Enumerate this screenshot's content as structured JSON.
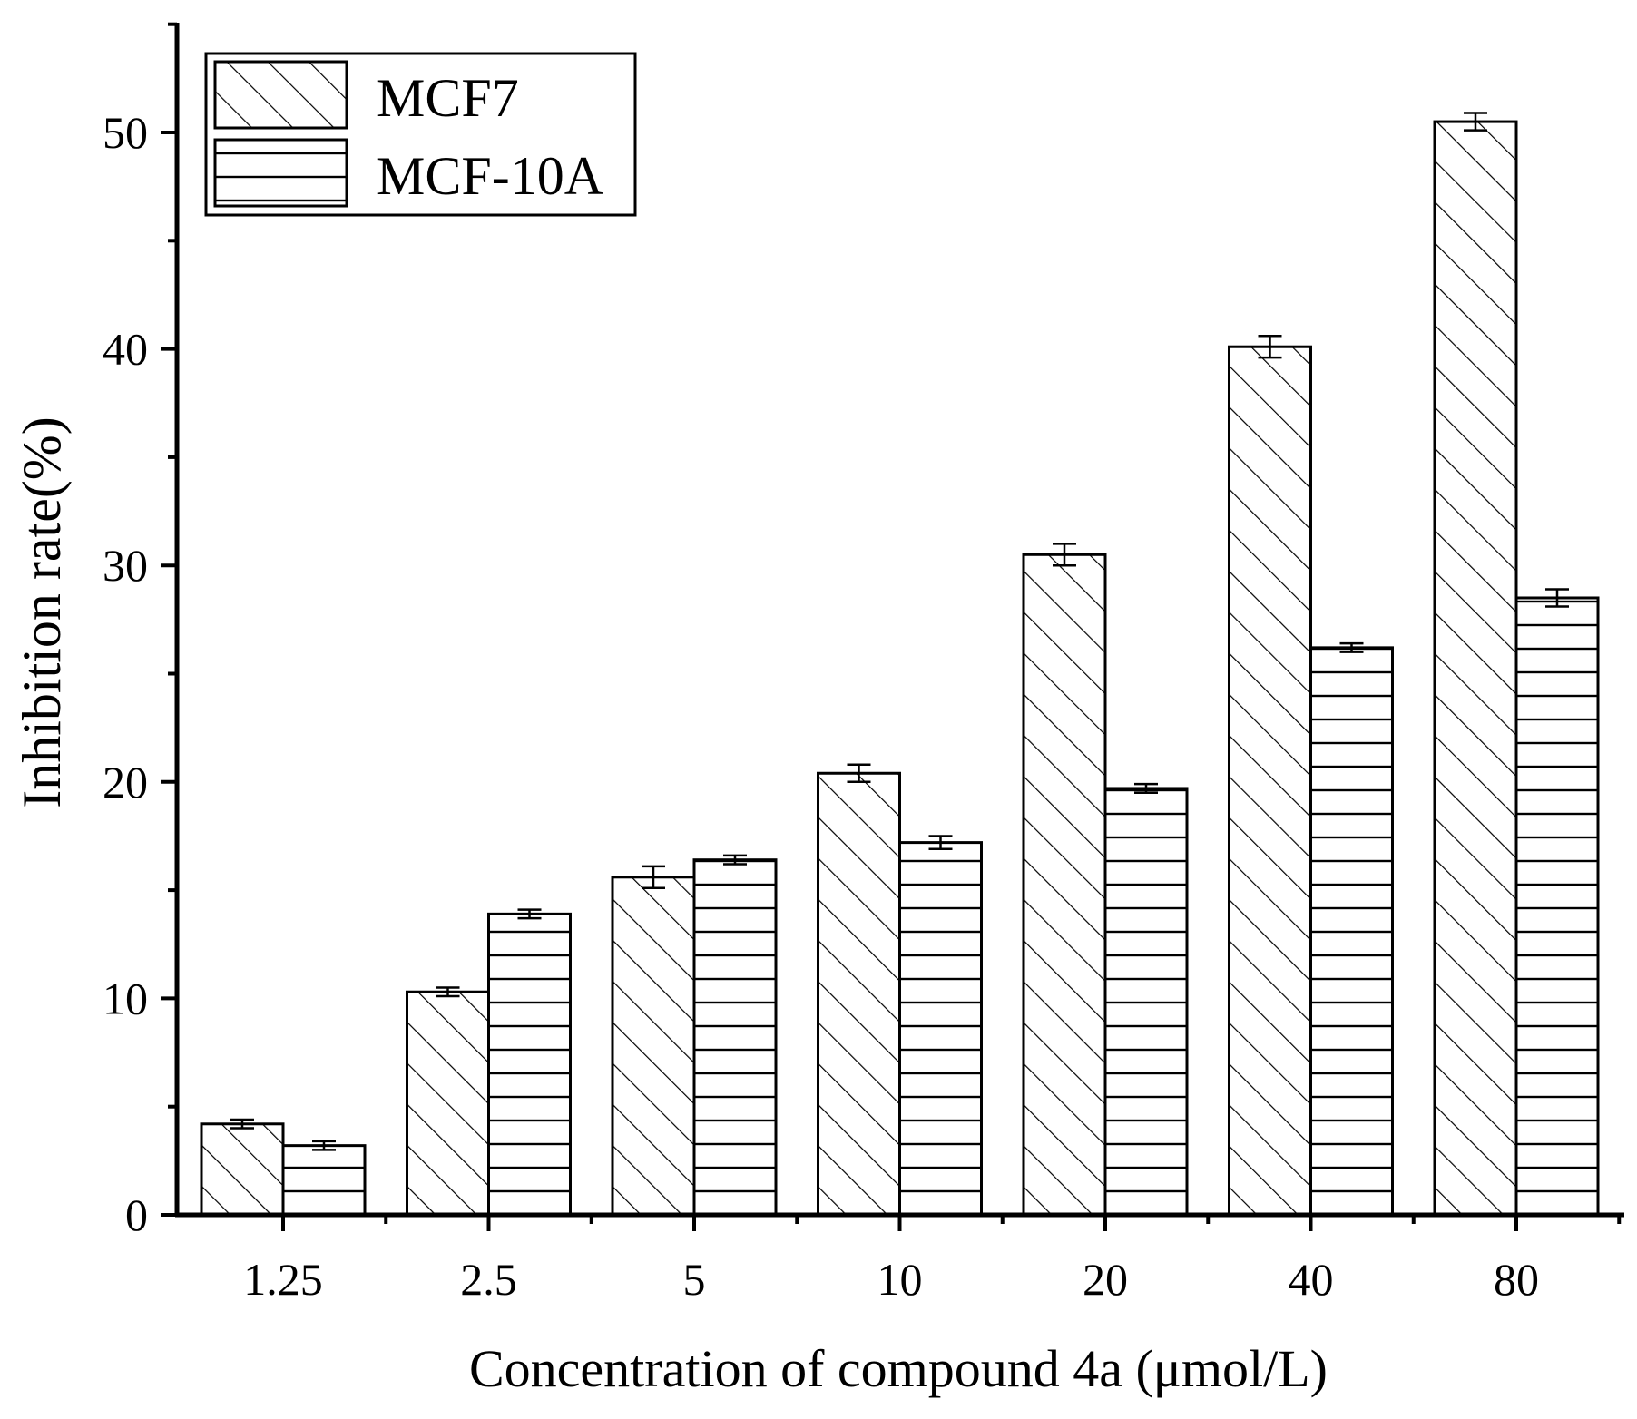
{
  "chart_data": {
    "type": "bar",
    "title": "",
    "xlabel": "Concentration of compound 4a (μmol/L)",
    "ylabel": "Inhibition rate(%)",
    "ylim": [
      0,
      55
    ],
    "yticks": [
      0,
      10,
      20,
      30,
      40,
      50
    ],
    "categories": [
      "1.25",
      "2.5",
      "5",
      "10",
      "20",
      "40",
      "80"
    ],
    "legend_position": "top-left",
    "series": [
      {
        "name": "MCF7",
        "pattern": "diagonal",
        "values": [
          4.2,
          10.3,
          15.6,
          20.4,
          30.5,
          40.1,
          50.5
        ],
        "errors": [
          0.2,
          0.2,
          0.5,
          0.4,
          0.5,
          0.5,
          0.4
        ]
      },
      {
        "name": "MCF-10A",
        "pattern": "horizontal",
        "values": [
          3.2,
          13.9,
          16.4,
          17.2,
          19.7,
          26.2,
          28.5
        ],
        "errors": [
          0.2,
          0.2,
          0.2,
          0.3,
          0.2,
          0.2,
          0.4
        ]
      }
    ],
    "colors": {
      "axis": "#000000",
      "fill": "#ffffff",
      "pattern": "#000000"
    }
  }
}
